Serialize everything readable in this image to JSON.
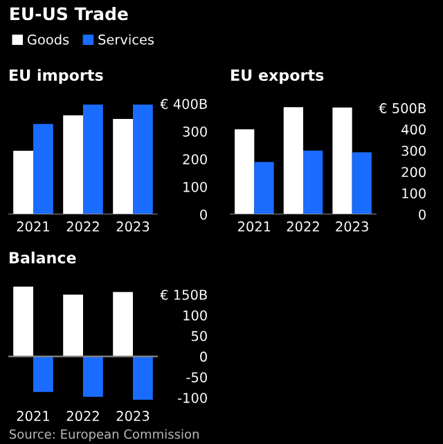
{
  "chart_data": [
    {
      "type": "bar",
      "title": "EU imports",
      "annotations": [
        "EU-US Trade"
      ],
      "categories": [
        "2021",
        "2022",
        "2023"
      ],
      "series": [
        {
          "name": "Goods",
          "color": "#ffffff",
          "values": [
            230,
            358,
            345
          ]
        },
        {
          "name": "Services",
          "color": "#1a6cff",
          "values": [
            327,
            397,
            397
          ]
        }
      ],
      "ylim": [
        0,
        400
      ],
      "yticks": [
        0,
        100,
        200,
        300,
        {
          "value": 400,
          "label": "€ 400B"
        }
      ],
      "legend": "top left"
    },
    {
      "type": "bar",
      "title": "EU exports",
      "categories": [
        "2021",
        "2022",
        "2023"
      ],
      "series": [
        {
          "color": "#ffffff",
          "values": [
            400,
            504,
            502
          ]
        },
        {
          "color": "#1a6cff",
          "values": [
            246,
            300,
            292
          ]
        }
      ],
      "ylim": [
        0,
        520
      ],
      "yticks": [
        0,
        100,
        200,
        300,
        400,
        {
          "value": 500,
          "label": "€ 500B"
        }
      ]
    },
    {
      "type": "bar",
      "title": "Balance",
      "annotations": [
        "Source: European Commission"
      ],
      "categories": [
        "2021",
        "2022",
        "2023"
      ],
      "series": [
        {
          "color": "#ffffff",
          "values": [
            169,
            150,
            156
          ]
        },
        {
          "color": "#1a6cff",
          "values": [
            -86,
            -98,
            -105
          ]
        }
      ],
      "ylim": [
        -115,
        170
      ],
      "yticks": [
        -100,
        -50,
        0,
        50,
        100,
        {
          "value": 150,
          "label": "€ 150B"
        }
      ]
    }
  ]
}
